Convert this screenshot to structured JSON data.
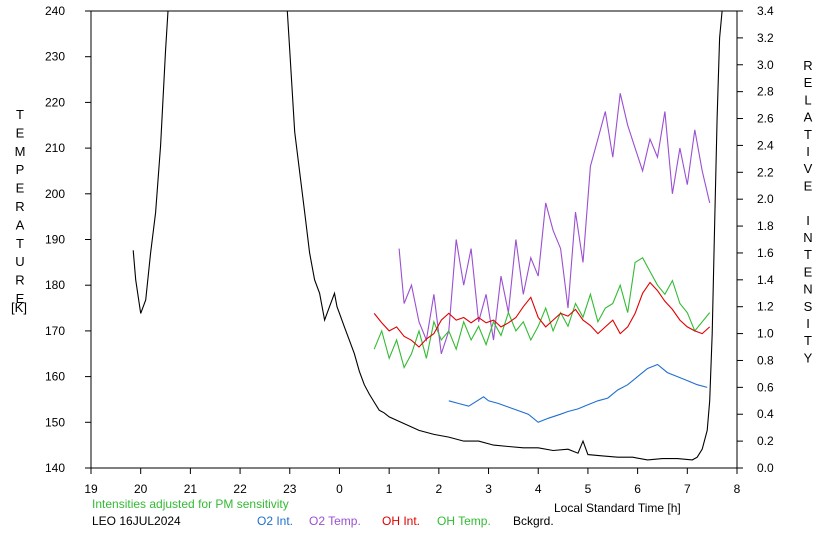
{
  "chart_data": {
    "type": "line",
    "title": "",
    "xlabel": "Local Standard Time [h]",
    "ylabel_left": "TEMPERATURE",
    "ylabel_left_unit": "[K]",
    "ylabel_right": "RELATIVE INTENSITY",
    "x_tick_labels": [
      "19",
      "20",
      "21",
      "22",
      "23",
      "0",
      "1",
      "2",
      "3",
      "4",
      "5",
      "6",
      "7",
      "8"
    ],
    "x_range_hours": [
      19,
      32
    ],
    "ylim_left": [
      140,
      240
    ],
    "ylim_right": [
      0.0,
      3.4
    ],
    "y_left_ticks": [
      140,
      150,
      160,
      170,
      180,
      190,
      200,
      210,
      220,
      230,
      240
    ],
    "y_right_ticks": [
      "0.0",
      "0.2",
      "0.4",
      "0.6",
      "0.8",
      "1.0",
      "1.2",
      "1.4",
      "1.6",
      "1.8",
      "2.0",
      "2.2",
      "2.4",
      "2.6",
      "2.8",
      "3.0",
      "3.2",
      "3.4"
    ],
    "note": "Intensities adjusted for PM sensitivity",
    "station": "LEO 16JUL2024",
    "grid": false,
    "legend": [
      {
        "label": "O2 Int.",
        "color": "#1f6fd0"
      },
      {
        "label": "O2 Temp.",
        "color": "#9b4fd1"
      },
      {
        "label": "OH Int.",
        "color": "#e00000"
      },
      {
        "label": "OH Temp.",
        "color": "#33bb33"
      },
      {
        "label": "Bckgrd.",
        "color": "#000000"
      }
    ],
    "series": [
      {
        "name": "Bckgrd.",
        "axis": "right",
        "color": "#000000",
        "x": [
          19.85,
          19.9,
          20.0,
          20.1,
          20.2,
          20.3,
          20.4,
          20.5,
          20.55,
          22.95,
          23.0,
          23.1,
          23.2,
          23.3,
          23.4,
          23.5,
          23.6,
          23.7,
          23.8,
          23.9,
          23.95,
          24.0,
          24.1,
          24.2,
          24.3,
          24.4,
          24.5,
          24.6,
          24.7,
          24.8,
          24.9,
          25.0,
          25.3,
          25.6,
          25.9,
          26.2,
          26.5,
          26.8,
          27.1,
          27.4,
          27.7,
          28.0,
          28.3,
          28.6,
          28.8,
          28.9,
          29.0,
          29.3,
          29.6,
          29.9,
          30.2,
          30.5,
          30.8,
          31.1,
          31.2,
          31.3,
          31.4,
          31.45,
          31.5,
          31.55,
          31.6,
          31.65,
          31.7
        ],
        "y": [
          1.62,
          1.4,
          1.15,
          1.25,
          1.6,
          1.9,
          2.4,
          3.1,
          3.4,
          3.4,
          3.1,
          2.5,
          2.2,
          1.9,
          1.6,
          1.4,
          1.3,
          1.1,
          1.2,
          1.3,
          1.2,
          1.15,
          1.05,
          0.95,
          0.85,
          0.72,
          0.62,
          0.55,
          0.49,
          0.43,
          0.41,
          0.38,
          0.33,
          0.28,
          0.25,
          0.23,
          0.2,
          0.2,
          0.17,
          0.16,
          0.15,
          0.15,
          0.13,
          0.14,
          0.11,
          0.2,
          0.1,
          0.09,
          0.08,
          0.08,
          0.06,
          0.07,
          0.07,
          0.06,
          0.08,
          0.14,
          0.28,
          0.5,
          1.0,
          1.8,
          2.6,
          3.2,
          3.4
        ]
      },
      {
        "name": "O2 Temp.",
        "axis": "left",
        "color": "#9b4fd1",
        "x": [
          25.2,
          25.3,
          25.45,
          25.6,
          25.75,
          25.9,
          26.05,
          26.2,
          26.35,
          26.5,
          26.65,
          26.8,
          26.95,
          27.1,
          27.25,
          27.4,
          27.55,
          27.7,
          27.85,
          28.0,
          28.15,
          28.3,
          28.45,
          28.6,
          28.75,
          28.9,
          29.05,
          29.2,
          29.35,
          29.5,
          29.65,
          29.8,
          29.95,
          30.1,
          30.25,
          30.4,
          30.55,
          30.7,
          30.85,
          31.0,
          31.15,
          31.3,
          31.45
        ],
        "y": [
          188,
          176,
          180,
          172,
          168,
          178,
          165,
          170,
          190,
          180,
          188,
          172,
          178,
          168,
          182,
          174,
          190,
          178,
          186,
          182,
          198,
          192,
          188,
          175,
          196,
          185,
          206,
          212,
          218,
          208,
          222,
          215,
          210,
          205,
          212,
          208,
          218,
          200,
          210,
          202,
          214,
          205,
          198
        ]
      },
      {
        "name": "OH Temp.",
        "axis": "left",
        "color": "#33bb33",
        "x": [
          24.7,
          24.85,
          25.0,
          25.15,
          25.3,
          25.45,
          25.6,
          25.75,
          25.9,
          26.05,
          26.2,
          26.35,
          26.5,
          26.65,
          26.8,
          26.95,
          27.1,
          27.25,
          27.4,
          27.55,
          27.7,
          27.85,
          28.0,
          28.15,
          28.3,
          28.45,
          28.6,
          28.75,
          28.9,
          29.05,
          29.2,
          29.35,
          29.5,
          29.65,
          29.8,
          29.95,
          30.1,
          30.25,
          30.4,
          30.55,
          30.7,
          30.85,
          31.0,
          31.15,
          31.3,
          31.45
        ],
        "y": [
          166,
          170,
          164,
          168,
          162,
          165,
          170,
          164,
          172,
          168,
          170,
          166,
          172,
          168,
          171,
          167,
          172,
          169,
          174,
          170,
          172,
          168,
          171,
          175,
          170,
          174,
          171,
          176,
          173,
          178,
          172,
          175,
          176,
          180,
          174,
          185,
          186,
          183,
          180,
          178,
          181,
          176,
          174,
          170,
          172,
          174
        ]
      },
      {
        "name": "OH Int.",
        "axis": "right",
        "color": "#e00000",
        "x": [
          24.7,
          24.85,
          25.0,
          25.15,
          25.3,
          25.45,
          25.6,
          25.75,
          25.9,
          26.05,
          26.2,
          26.35,
          26.5,
          26.65,
          26.8,
          26.95,
          27.1,
          27.25,
          27.4,
          27.55,
          27.7,
          27.85,
          28.0,
          28.15,
          28.3,
          28.45,
          28.6,
          28.75,
          28.9,
          29.05,
          29.2,
          29.35,
          29.5,
          29.65,
          29.8,
          29.95,
          30.1,
          30.25,
          30.4,
          30.55,
          30.7,
          30.85,
          31.0,
          31.15,
          31.3,
          31.45
        ],
        "y": [
          1.15,
          1.08,
          1.02,
          1.05,
          0.98,
          0.95,
          0.9,
          0.96,
          1.0,
          1.1,
          1.15,
          1.1,
          1.12,
          1.08,
          1.12,
          1.08,
          1.1,
          1.05,
          1.08,
          1.12,
          1.2,
          1.27,
          1.12,
          1.05,
          1.1,
          1.15,
          1.13,
          1.18,
          1.1,
          1.06,
          1.0,
          1.05,
          1.1,
          1.0,
          1.05,
          1.15,
          1.3,
          1.38,
          1.32,
          1.24,
          1.18,
          1.1,
          1.05,
          1.02,
          1.0,
          1.05
        ]
      },
      {
        "name": "O2 Int.",
        "axis": "right",
        "color": "#1f6fd0",
        "x": [
          26.2,
          26.4,
          26.6,
          26.9,
          27.0,
          27.2,
          27.5,
          27.8,
          28.0,
          28.2,
          28.45,
          28.6,
          28.8,
          29.0,
          29.2,
          29.4,
          29.6,
          29.8,
          30.0,
          30.2,
          30.4,
          30.6,
          30.8,
          31.0,
          31.2,
          31.4
        ],
        "y": [
          0.5,
          0.48,
          0.46,
          0.53,
          0.5,
          0.48,
          0.44,
          0.4,
          0.34,
          0.37,
          0.4,
          0.42,
          0.44,
          0.47,
          0.5,
          0.52,
          0.58,
          0.62,
          0.68,
          0.74,
          0.77,
          0.71,
          0.68,
          0.65,
          0.62,
          0.6
        ]
      }
    ]
  }
}
